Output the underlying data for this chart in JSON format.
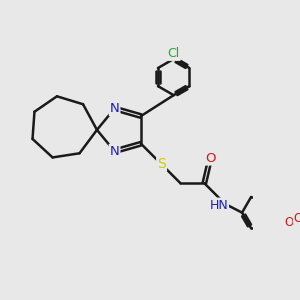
{
  "bg_color": "#e8e8e8",
  "bond_color": "#1a1a1a",
  "bond_width": 1.8,
  "atom_colors": {
    "N": "#1a1acc",
    "S": "#cccc00",
    "O": "#cc1a1a",
    "Cl": "#22aa22",
    "C": "#1a1a1a"
  },
  "font_size": 8.5,
  "fig_size": [
    3.0,
    3.0
  ],
  "dpi": 100,
  "xlim": [
    0,
    10
  ],
  "ylim": [
    0,
    10
  ]
}
